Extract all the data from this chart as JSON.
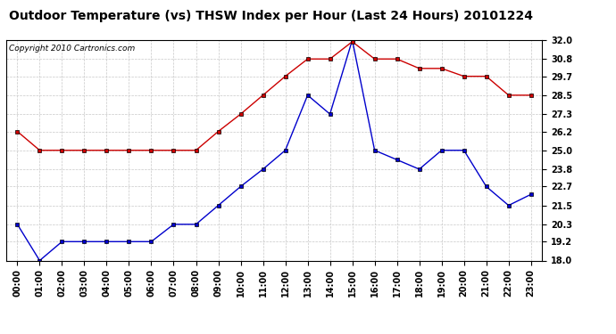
{
  "title": "Outdoor Temperature (vs) THSW Index per Hour (Last 24 Hours) 20101224",
  "copyright": "Copyright 2010 Cartronics.com",
  "hours": [
    "00:00",
    "01:00",
    "02:00",
    "03:00",
    "04:00",
    "05:00",
    "06:00",
    "07:00",
    "08:00",
    "09:00",
    "10:00",
    "11:00",
    "12:00",
    "13:00",
    "14:00",
    "15:00",
    "16:00",
    "17:00",
    "18:00",
    "19:00",
    "20:00",
    "21:00",
    "22:00",
    "23:00"
  ],
  "blue_data": [
    20.3,
    18.0,
    19.2,
    19.2,
    19.2,
    19.2,
    19.2,
    20.3,
    20.3,
    21.5,
    22.7,
    23.8,
    25.0,
    28.5,
    27.3,
    32.0,
    25.0,
    24.4,
    23.8,
    25.0,
    25.0,
    22.7,
    21.5,
    22.2
  ],
  "red_data": [
    26.2,
    25.0,
    25.0,
    25.0,
    25.0,
    25.0,
    25.0,
    25.0,
    25.0,
    26.2,
    27.3,
    28.5,
    29.7,
    30.8,
    30.8,
    31.9,
    30.8,
    30.8,
    30.2,
    30.2,
    29.7,
    29.7,
    28.5,
    28.5
  ],
  "ylim": [
    18.0,
    32.0
  ],
  "yticks": [
    18.0,
    19.2,
    20.3,
    21.5,
    22.7,
    23.8,
    25.0,
    26.2,
    27.3,
    28.5,
    29.7,
    30.8,
    32.0
  ],
  "blue_color": "#0000cc",
  "red_color": "#cc0000",
  "bg_color": "#ffffff",
  "grid_color": "#c8c8c8",
  "title_fontsize": 10,
  "tick_fontsize": 7,
  "copyright_fontsize": 6.5
}
